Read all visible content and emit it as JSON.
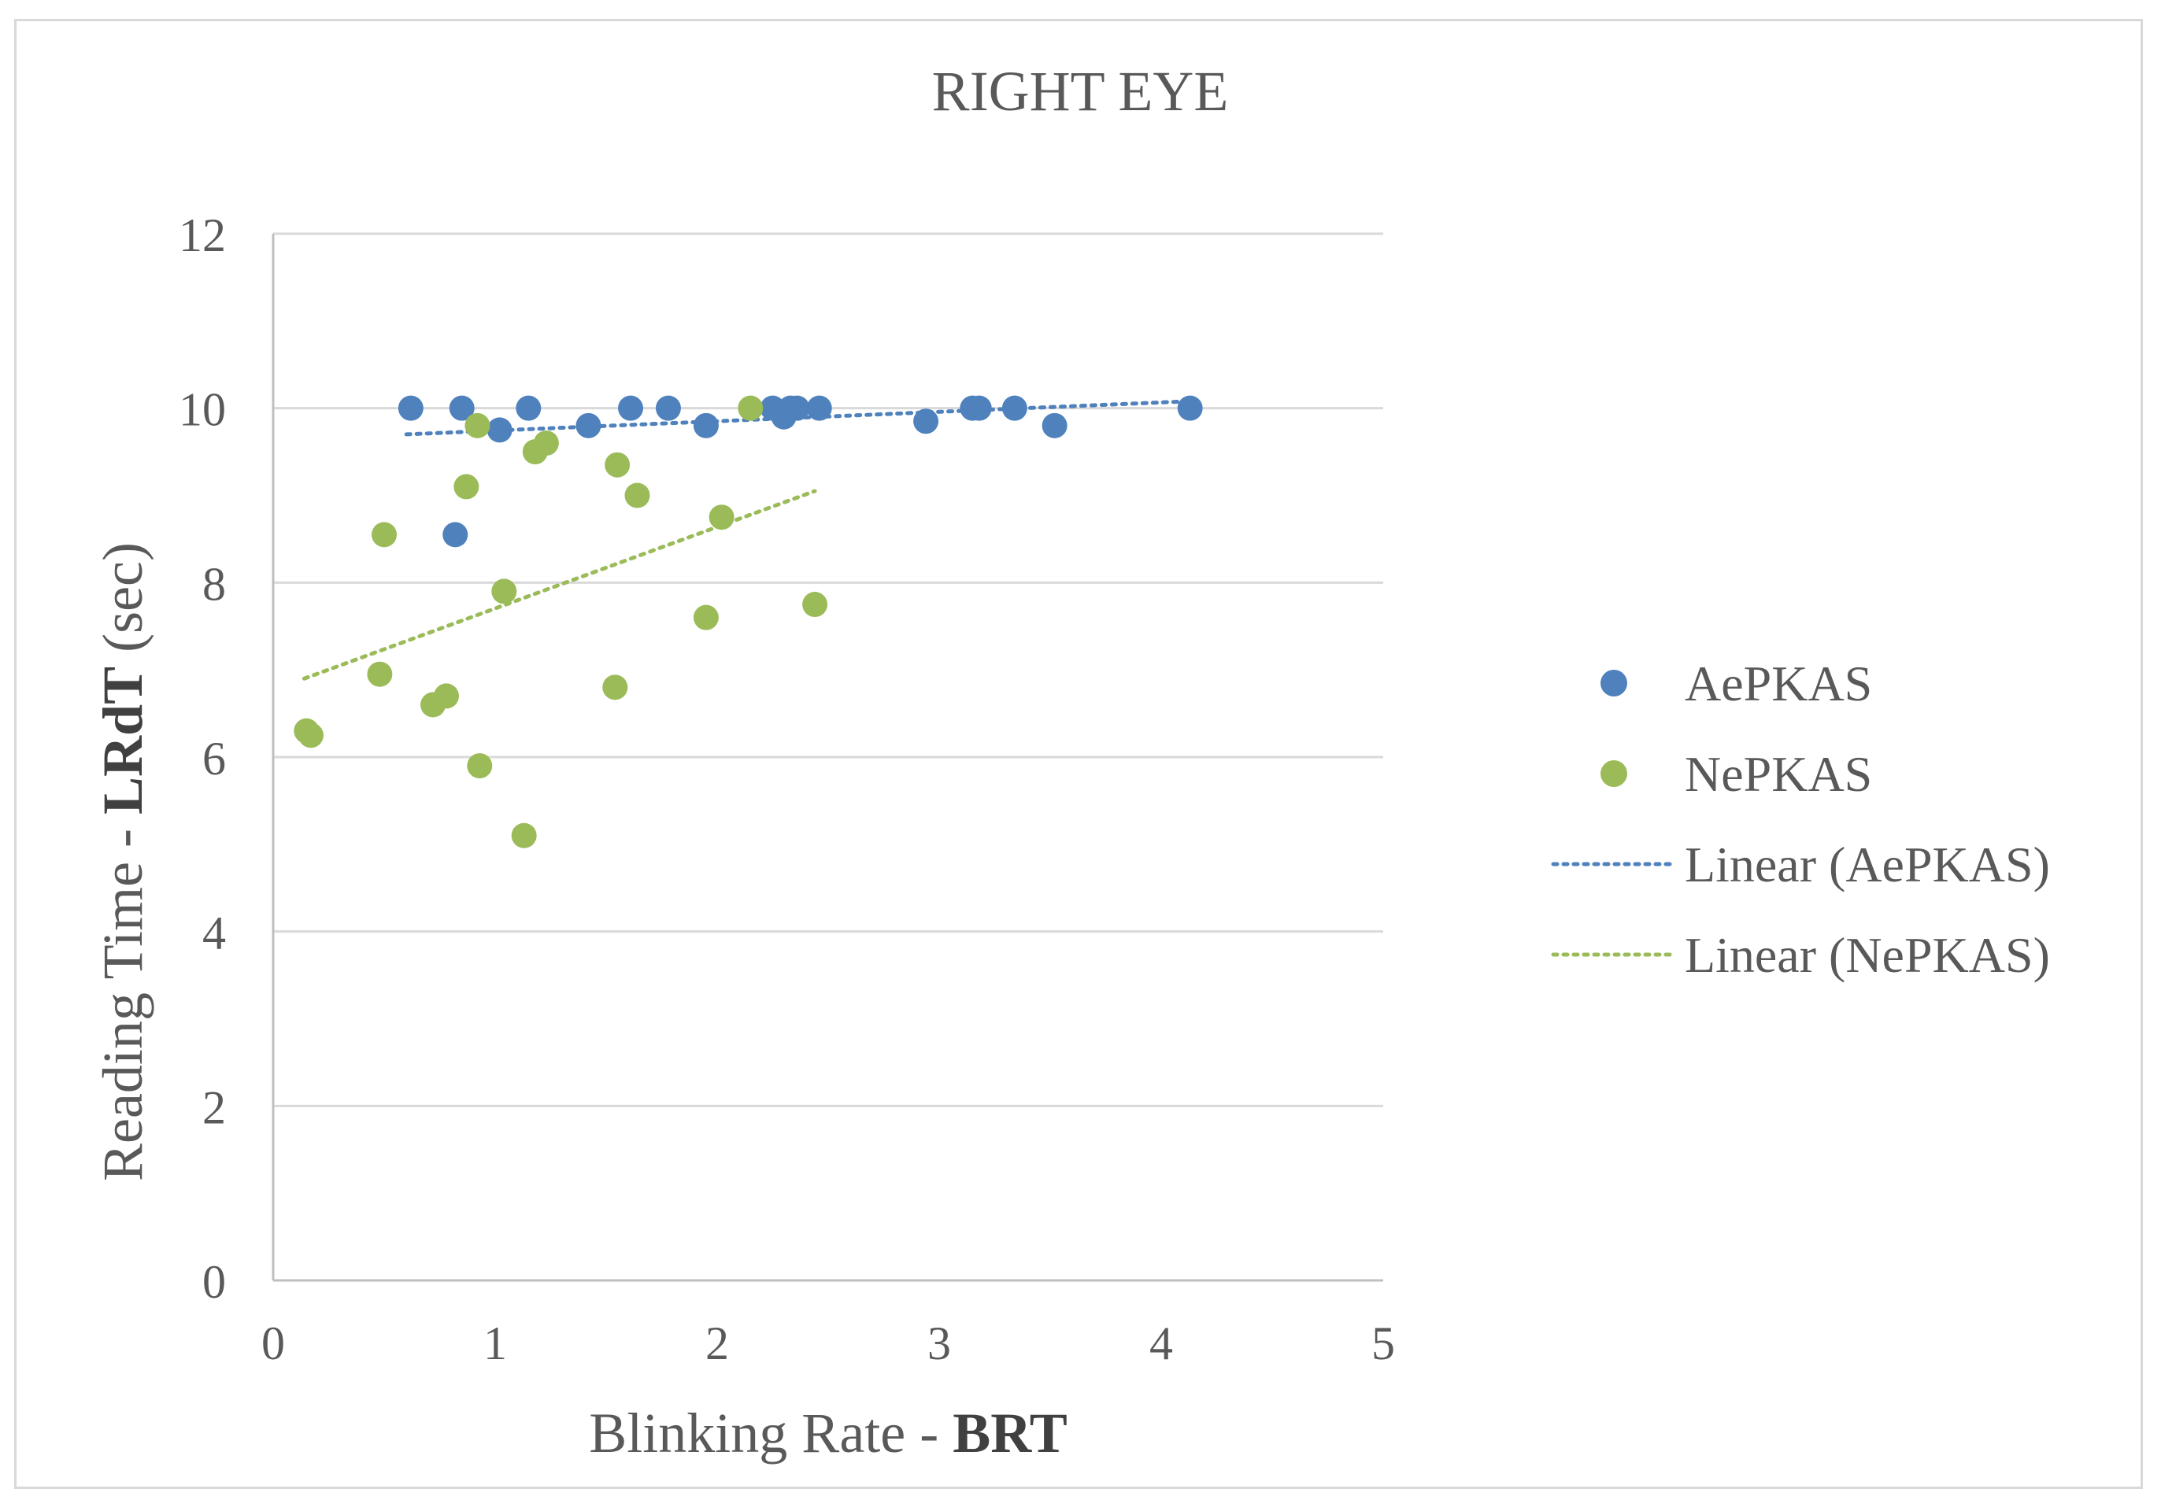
{
  "chart_data": {
    "type": "scatter",
    "title": "RIGHT EYE",
    "xlabel": {
      "normal": "Blinking Rate - ",
      "bold": "BRT"
    },
    "ylabel": {
      "normal": "Reading Time - ",
      "bold": "LRdT",
      "suffix": " (sec)"
    },
    "xlim": [
      0,
      5
    ],
    "ylim": [
      0,
      12
    ],
    "x_ticks": [
      0,
      1,
      2,
      3,
      4,
      5
    ],
    "y_ticks": [
      0,
      2,
      4,
      6,
      8,
      10,
      12
    ],
    "x_tick_labels": [
      "0",
      "1",
      "2",
      "3",
      "4",
      "5"
    ],
    "y_tick_labels": [
      "0",
      "2",
      "4",
      "6",
      "8",
      "10",
      "12"
    ],
    "grid": "horizontal",
    "legend_position": "right",
    "series": [
      {
        "name": "AePKAS",
        "color": "#4f81bd",
        "points": [
          {
            "x": 0.62,
            "y": 10.0
          },
          {
            "x": 0.85,
            "y": 10.0
          },
          {
            "x": 0.82,
            "y": 8.55
          },
          {
            "x": 1.02,
            "y": 9.75
          },
          {
            "x": 1.15,
            "y": 10.0
          },
          {
            "x": 1.42,
            "y": 9.8
          },
          {
            "x": 1.61,
            "y": 10.0
          },
          {
            "x": 1.78,
            "y": 10.0
          },
          {
            "x": 1.95,
            "y": 9.8
          },
          {
            "x": 2.25,
            "y": 10.0
          },
          {
            "x": 2.3,
            "y": 9.9
          },
          {
            "x": 2.33,
            "y": 10.0
          },
          {
            "x": 2.36,
            "y": 10.0
          },
          {
            "x": 2.46,
            "y": 10.0
          },
          {
            "x": 2.94,
            "y": 9.85
          },
          {
            "x": 3.15,
            "y": 10.0
          },
          {
            "x": 3.18,
            "y": 10.0
          },
          {
            "x": 3.34,
            "y": 10.0
          },
          {
            "x": 3.52,
            "y": 9.8
          },
          {
            "x": 4.13,
            "y": 10.0
          }
        ]
      },
      {
        "name": "NePKAS",
        "color": "#9bbb59",
        "points": [
          {
            "x": 0.15,
            "y": 6.3
          },
          {
            "x": 0.17,
            "y": 6.25
          },
          {
            "x": 0.48,
            "y": 6.95
          },
          {
            "x": 0.5,
            "y": 8.55
          },
          {
            "x": 0.72,
            "y": 6.6
          },
          {
            "x": 0.78,
            "y": 6.7
          },
          {
            "x": 0.87,
            "y": 9.1
          },
          {
            "x": 0.92,
            "y": 9.8
          },
          {
            "x": 0.93,
            "y": 5.9
          },
          {
            "x": 1.04,
            "y": 7.9
          },
          {
            "x": 1.13,
            "y": 5.1
          },
          {
            "x": 1.18,
            "y": 9.5
          },
          {
            "x": 1.23,
            "y": 9.6
          },
          {
            "x": 1.54,
            "y": 6.8
          },
          {
            "x": 1.55,
            "y": 9.35
          },
          {
            "x": 1.64,
            "y": 9.0
          },
          {
            "x": 1.95,
            "y": 7.6
          },
          {
            "x": 2.02,
            "y": 8.75
          },
          {
            "x": 2.15,
            "y": 10.0
          },
          {
            "x": 2.44,
            "y": 7.75
          }
        ]
      }
    ],
    "trendlines": [
      {
        "name": "Linear (AePKAS)",
        "color": "#4f81bd",
        "x": [
          0.6,
          4.13
        ],
        "y": [
          9.7,
          10.08
        ]
      },
      {
        "name": "Linear (NePKAS)",
        "color": "#9bbb59",
        "x": [
          0.14,
          2.44
        ],
        "y": [
          6.9,
          9.05
        ]
      }
    ],
    "legend": [
      {
        "label": "AePKAS",
        "kind": "marker",
        "color": "#4f81bd"
      },
      {
        "label": "NePKAS",
        "kind": "marker",
        "color": "#9bbb59"
      },
      {
        "label": "Linear (AePKAS)",
        "kind": "line",
        "color": "#4f81bd"
      },
      {
        "label": "Linear (NePKAS)",
        "kind": "line",
        "color": "#9bbb59"
      }
    ]
  }
}
